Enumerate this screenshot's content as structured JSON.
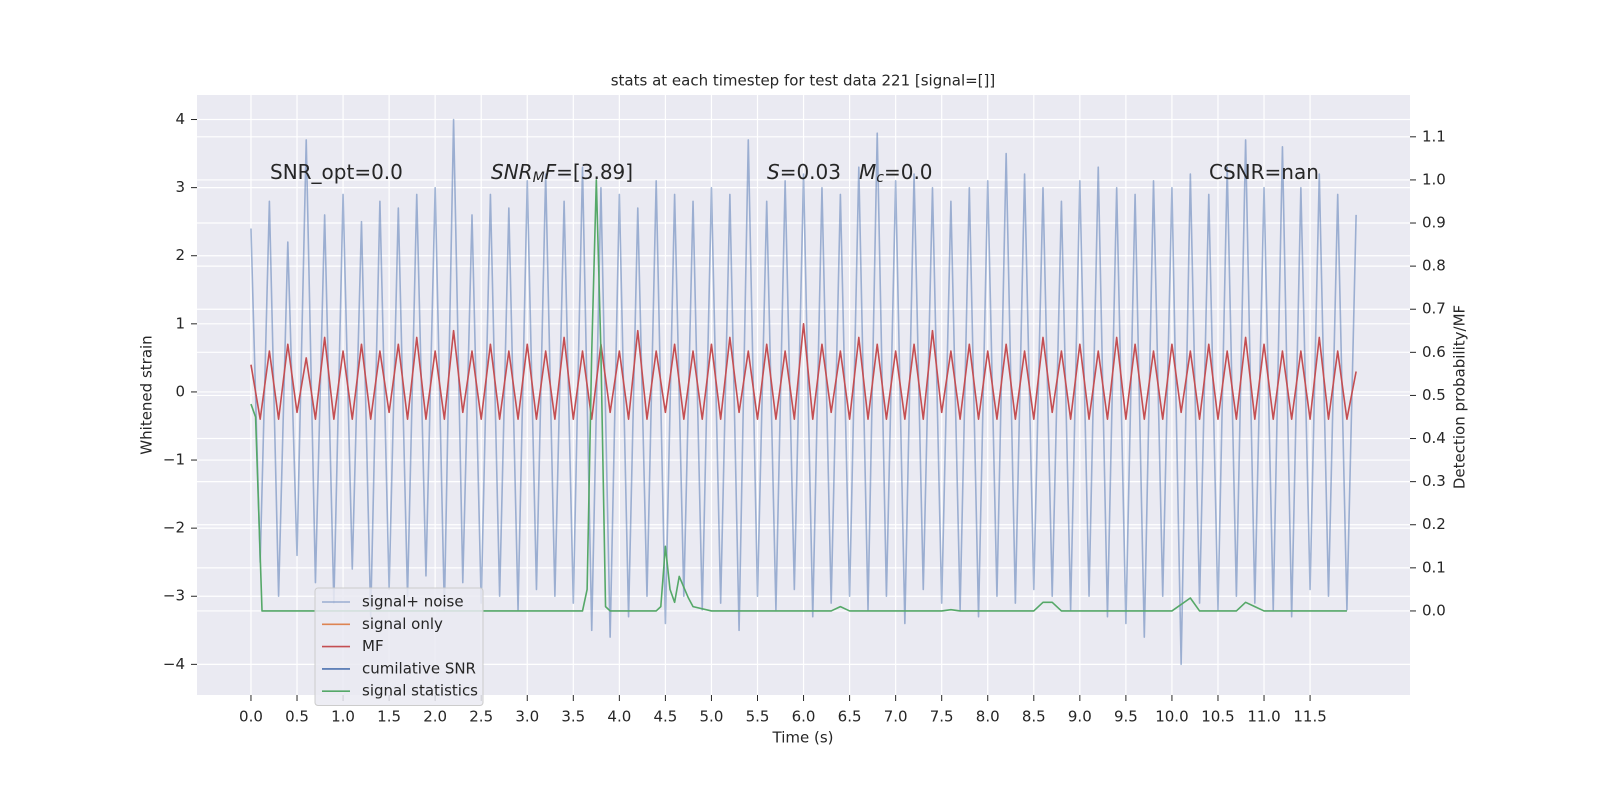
{
  "chart_data": {
    "type": "line",
    "title": "stats at each timestep for test data 221 [signal=[]]",
    "x_label": "Time (s)",
    "y_label": "Whitened strain",
    "y2_label": "Detection probability/MF",
    "grid": true,
    "legend": "lower left",
    "xlim": [
      -0.586,
      12.585
    ],
    "ylim": [
      -4.45,
      4.36
    ],
    "y2lim": [
      -0.195,
      1.197
    ],
    "xticks": [
      {
        "value": 0,
        "label": "0.0"
      },
      0.5,
      {
        "value": 1,
        "label": "1.0"
      },
      1.5,
      {
        "value": 2,
        "label": "2.0"
      },
      2.5,
      {
        "value": 3,
        "label": "3.0"
      },
      3.5,
      {
        "value": 4,
        "label": "4.0"
      },
      4.5,
      {
        "value": 5,
        "label": "5.0"
      },
      5.5,
      {
        "value": 6,
        "label": "6.0"
      },
      6.5,
      {
        "value": 7,
        "label": "7.0"
      },
      7.5,
      {
        "value": 8,
        "label": "8.0"
      },
      8.5,
      {
        "value": 9,
        "label": "9.0"
      },
      9.5,
      {
        "value": 10,
        "label": "10.0"
      },
      10.5,
      {
        "value": 11,
        "label": "11.0"
      },
      11.5
    ],
    "yticks": [
      {
        "value": -4,
        "label": "−4"
      },
      {
        "value": -3,
        "label": "−3"
      },
      {
        "value": -2,
        "label": "−2"
      },
      {
        "value": -1,
        "label": "−1"
      },
      0,
      1,
      2,
      3,
      4
    ],
    "y2ticks": [
      {
        "value": 0,
        "label": "0.0"
      },
      0.1,
      0.2,
      0.3,
      0.4,
      0.5,
      0.6,
      0.7,
      0.8,
      0.9,
      {
        "value": 1,
        "label": "1.0"
      },
      1.1
    ],
    "annotations": [
      {
        "segments": [
          {
            "text": "SNR_opt=0.0"
          }
        ]
      },
      {
        "segments": [
          {
            "text": "SNR",
            "italic": true
          },
          {
            "text": "M",
            "italic": true,
            "sub": true
          },
          {
            "text": "F",
            "italic": true
          },
          {
            "text": "=[3.89]"
          }
        ]
      },
      {
        "segments": [
          {
            "text": "S",
            "italic": true
          },
          {
            "text": "=0.03"
          }
        ]
      },
      {
        "segments": [
          {
            "text": "M",
            "italic": true
          },
          {
            "text": "c",
            "italic": true,
            "sub": true
          },
          {
            "text": "=0.0"
          }
        ]
      },
      {
        "segments": [
          {
            "text": "CSNR=nan"
          }
        ]
      }
    ],
    "x": [
      0,
      0.1,
      0.2,
      0.3,
      0.4,
      0.5,
      0.6,
      0.7,
      0.8,
      0.9,
      1,
      1.1,
      1.2,
      1.3,
      1.4,
      1.5,
      1.6,
      1.7,
      1.8,
      1.9,
      2,
      2.1,
      2.2,
      2.3,
      2.4,
      2.5,
      2.6,
      2.7,
      2.8,
      2.9,
      3,
      3.1,
      3.2,
      3.3,
      3.4,
      3.5,
      3.6,
      3.7,
      3.8,
      3.9,
      4,
      4.1,
      4.2,
      4.3,
      4.4,
      4.5,
      4.6,
      4.7,
      4.8,
      4.9,
      5,
      5.1,
      5.2,
      5.3,
      5.4,
      5.5,
      5.6,
      5.7,
      5.8,
      5.9,
      6,
      6.1,
      6.2,
      6.3,
      6.4,
      6.5,
      6.6,
      6.7,
      6.8,
      6.9,
      7,
      7.1,
      7.2,
      7.3,
      7.4,
      7.5,
      7.6,
      7.7,
      7.8,
      7.9,
      8,
      8.1,
      8.2,
      8.3,
      8.4,
      8.5,
      8.6,
      8.7,
      8.8,
      8.9,
      9,
      9.1,
      9.2,
      9.3,
      9.4,
      9.5,
      9.6,
      9.7,
      9.8,
      9.9,
      10,
      10.1,
      10.2,
      10.3,
      10.4,
      10.5,
      10.6,
      10.7,
      10.8,
      10.9,
      11,
      11.1,
      11.2,
      11.3,
      11.4,
      11.5,
      11.6,
      11.7,
      11.8,
      11.9,
      12
    ],
    "series": [
      {
        "name": "signal+ noise",
        "color": "#4c72b0",
        "opacity": 0.5,
        "values": [
          2.4,
          -2.5,
          2.8,
          -3.0,
          2.2,
          -2.4,
          3.7,
          -2.8,
          2.6,
          -3.1,
          2.9,
          -2.6,
          2.5,
          -3.3,
          2.8,
          -2.9,
          2.7,
          -3.0,
          2.9,
          -2.7,
          3.0,
          -3.2,
          4.0,
          -2.8,
          2.6,
          -3.1,
          2.9,
          -3.0,
          2.7,
          -3.2,
          3.1,
          -2.9,
          3.2,
          -3.0,
          2.8,
          -3.1,
          3.3,
          -3.5,
          3.0,
          -3.6,
          2.9,
          -3.3,
          2.7,
          -3.0,
          3.1,
          -3.4,
          2.9,
          -3.0,
          2.8,
          -3.2,
          3.0,
          -3.1,
          2.9,
          -3.5,
          3.7,
          -3.0,
          2.8,
          -3.2,
          3.1,
          -2.9,
          3.2,
          -3.3,
          3.0,
          -3.1,
          2.9,
          -3.0,
          3.3,
          -3.2,
          3.8,
          -3.0,
          3.1,
          -3.4,
          3.2,
          -2.9,
          3.0,
          -3.1,
          2.8,
          -3.2,
          3.0,
          -3.3,
          3.1,
          -3.0,
          3.5,
          -3.1,
          3.2,
          -2.9,
          3.0,
          -3.0,
          2.8,
          -3.2,
          3.1,
          -3.0,
          3.3,
          -3.3,
          3.0,
          -3.4,
          2.9,
          -3.6,
          3.1,
          -3.0,
          3.0,
          -4.0,
          3.2,
          -3.1,
          2.9,
          -3.2,
          3.3,
          -3.0,
          3.7,
          -3.1,
          3.0,
          -3.2,
          3.6,
          -3.3,
          3.0,
          -2.9,
          3.2,
          -3.0,
          2.9,
          -3.2,
          2.6
        ]
      },
      {
        "name": "signal only",
        "color": "#dd8452"
      },
      {
        "name": "MF",
        "color": "#c44e52",
        "values": [
          0.4,
          -0.4,
          0.6,
          -0.4,
          0.7,
          -0.3,
          0.5,
          -0.4,
          0.8,
          -0.4,
          0.6,
          -0.4,
          0.7,
          -0.4,
          0.6,
          -0.3,
          0.7,
          -0.4,
          0.8,
          -0.4,
          0.6,
          -0.4,
          0.9,
          -0.3,
          0.6,
          -0.4,
          0.7,
          -0.4,
          0.6,
          -0.4,
          0.7,
          -0.4,
          0.6,
          -0.4,
          0.8,
          -0.4,
          0.6,
          -0.4,
          0.7,
          -0.3,
          0.6,
          -0.4,
          0.9,
          -0.4,
          0.6,
          -0.3,
          0.7,
          -0.4,
          0.6,
          -0.4,
          0.7,
          -0.4,
          0.8,
          -0.3,
          0.6,
          -0.4,
          0.7,
          -0.4,
          0.6,
          -0.4,
          1.0,
          -0.4,
          0.7,
          -0.3,
          0.6,
          -0.4,
          0.8,
          -0.4,
          0.7,
          -0.4,
          0.6,
          -0.4,
          0.7,
          -0.4,
          0.9,
          -0.3,
          0.6,
          -0.4,
          0.7,
          -0.4,
          0.6,
          -0.4,
          0.7,
          -0.4,
          0.6,
          -0.4,
          0.8,
          -0.3,
          0.6,
          -0.4,
          0.7,
          -0.4,
          0.6,
          -0.4,
          0.8,
          -0.4,
          0.7,
          -0.4,
          0.6,
          -0.4,
          0.7,
          -0.3,
          0.6,
          -0.4,
          0.7,
          -0.4,
          0.6,
          -0.4,
          0.8,
          -0.4,
          0.7,
          -0.4,
          0.6,
          -0.4,
          0.6,
          -0.4,
          0.8,
          -0.4,
          0.6,
          -0.4,
          0.3
        ]
      },
      {
        "name": "cumilative SNR",
        "color": "#4c72b0"
      },
      {
        "name": "signal statistics",
        "color": "#55a868",
        "axis": "y2",
        "x": [
          0,
          0.05,
          0.12,
          0.3,
          1,
          2,
          3,
          3.6,
          3.65,
          3.7,
          3.75,
          3.8,
          3.85,
          3.9,
          4.4,
          4.45,
          4.5,
          4.55,
          4.6,
          4.65,
          4.75,
          4.8,
          5,
          6.3,
          6.4,
          6.5,
          7.5,
          7.6,
          7.7,
          8.5,
          8.6,
          8.7,
          8.8,
          10,
          10.2,
          10.3,
          10.7,
          10.8,
          10.9,
          11,
          11.9
        ],
        "values": [
          0.48,
          0.45,
          0,
          0,
          0,
          0,
          0,
          0,
          0.05,
          0.6,
          1.0,
          0.6,
          0.01,
          0,
          0,
          0.01,
          0.15,
          0.05,
          0.02,
          0.08,
          0.03,
          0.01,
          0,
          0,
          0.01,
          0,
          0,
          0.003,
          0,
          0,
          0.02,
          0.02,
          0,
          0,
          0.03,
          0,
          0,
          0.02,
          0.01,
          0,
          0
        ]
      }
    ]
  }
}
